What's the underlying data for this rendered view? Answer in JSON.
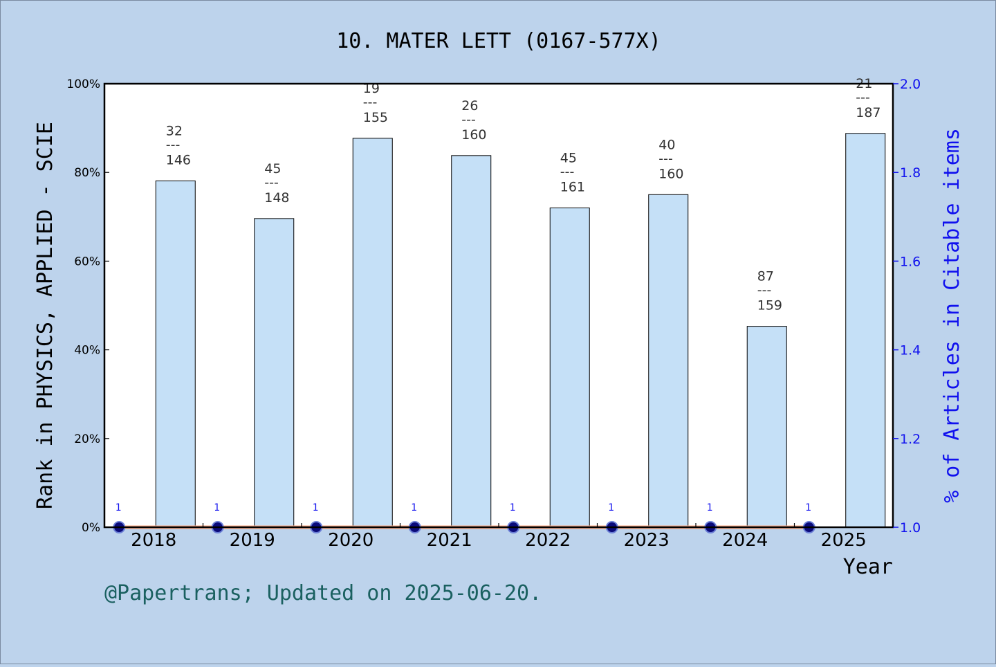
{
  "chart_data": {
    "type": "bar",
    "title": "10. MATER LETT (0167-577X)",
    "xlabel": "Year",
    "ylabel": "Rank in PHYSICS, APPLIED - SCIE",
    "ylabel_right": "% of Articles in Citable items",
    "categories": [
      "2018",
      "2019",
      "2020",
      "2021",
      "2022",
      "2023",
      "2024",
      "2025"
    ],
    "ylim": [
      0,
      100
    ],
    "ylim_right": [
      1.0,
      2.0
    ],
    "yticks_left": [
      "0%",
      "20%",
      "40%",
      "60%",
      "80%",
      "100%"
    ],
    "yticks_right": [
      "1.0",
      "1.2",
      "1.4",
      "1.6",
      "1.8",
      "2.0"
    ],
    "series": [
      {
        "type": "bar",
        "values": [
          78.1,
          69.6,
          87.7,
          83.8,
          72.0,
          75.0,
          45.3,
          88.8
        ],
        "rank": [
          "32",
          "45",
          "19",
          "26",
          "45",
          "40",
          "87",
          "21"
        ],
        "total": [
          "146",
          "148",
          "155",
          "160",
          "161",
          "160",
          "159",
          "187"
        ],
        "color": "#c5e0f7"
      },
      {
        "type": "line",
        "axis": "right",
        "values": [
          1.0,
          1.0,
          1.0,
          1.0,
          1.0,
          1.0,
          1.0,
          1.0
        ],
        "point_labels": [
          "1",
          "1",
          "1",
          "1",
          "1",
          "1",
          "1",
          "1"
        ],
        "color": "#0a0a7a"
      }
    ],
    "bar_label_separator": "---",
    "grid": false
  },
  "footer": "@Papertrans; Updated on 2025-06-20.",
  "colors": {
    "background": "#bdd3ec",
    "plot_background": "#ffffff",
    "bar_fill": "#c5e0f7",
    "right_axis": "#1010ee",
    "baseline_line": "#f4a582",
    "footer_text": "#1a6060"
  }
}
